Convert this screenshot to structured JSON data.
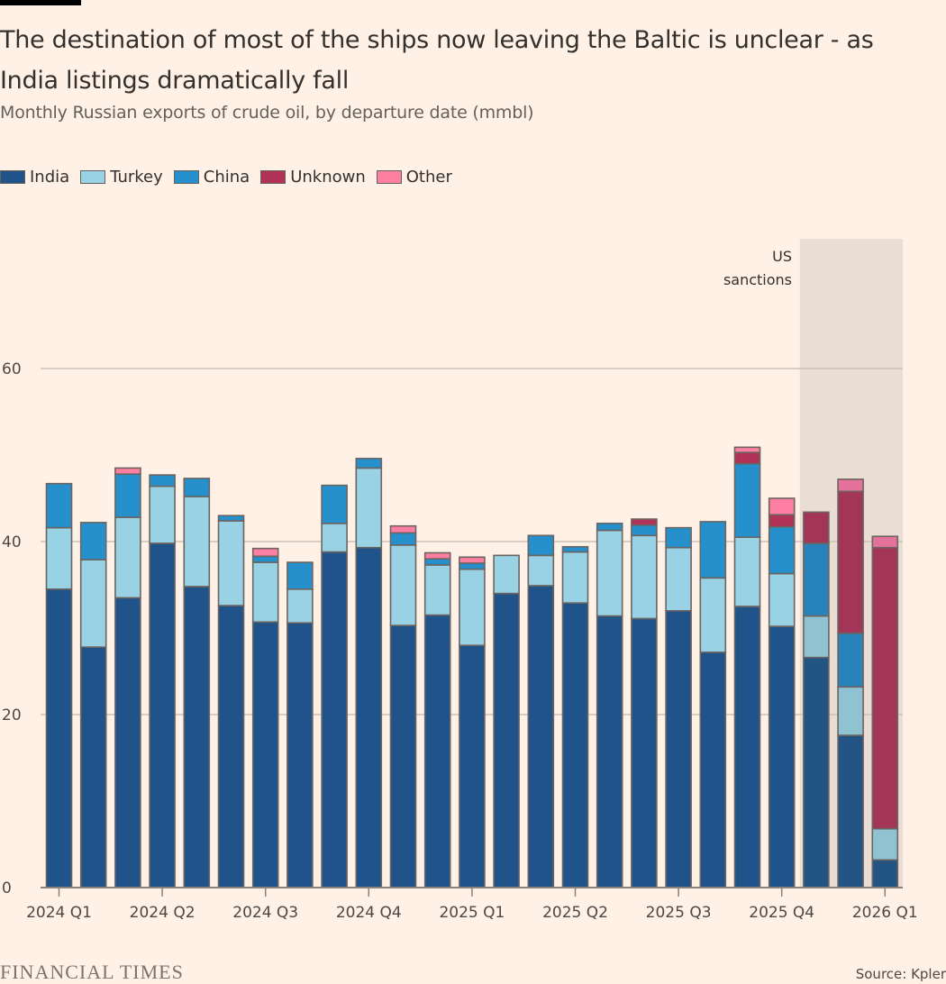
{
  "header": {
    "title": "The destination of most of the ships now leaving the Baltic is unclear - as India listings dramatically fall",
    "subtitle": "Monthly Russian exports of crude oil, by departure date (mmbl)"
  },
  "legend": [
    {
      "label": "India",
      "color": "#1f5389"
    },
    {
      "label": "Turkey",
      "color": "#98d2e4"
    },
    {
      "label": "China",
      "color": "#2590cc"
    },
    {
      "label": "Unknown",
      "color": "#b03357"
    },
    {
      "label": "Other",
      "color": "#ff7fa2"
    }
  ],
  "annotation": {
    "line1": "US",
    "line2": "sanctions"
  },
  "footer": {
    "publisher": "FINANCIAL TIMES",
    "source": "Source: Kpler"
  },
  "chart_data": {
    "type": "bar",
    "stacked": true,
    "title": "The destination of most of the ships now leaving the Baltic is unclear - as India listings dramatically fall",
    "subtitle": "Monthly Russian exports of crude oil, by departure date (mmbl)",
    "xlabel": "",
    "ylabel": "",
    "ylim": [
      0,
      75
    ],
    "yticks": [
      0,
      20,
      40,
      60
    ],
    "grid": true,
    "legend_position": "top-left",
    "x_tick_labels": [
      "2024 Q1",
      "2024 Q2",
      "2024 Q3",
      "2024 Q4",
      "2025 Q1",
      "2025 Q2",
      "2025 Q3",
      "2025 Q4",
      "2026 Q1"
    ],
    "x_tick_positions": [
      0,
      3,
      6,
      9,
      12,
      15,
      18,
      21,
      24
    ],
    "categories": [
      "Jan 2024",
      "Feb 2024",
      "Mar 2024",
      "Apr 2024",
      "May 2024",
      "Jun 2024",
      "Jul 2024",
      "Aug 2024",
      "Sep 2024",
      "Oct 2024",
      "Nov 2024",
      "Dec 2024",
      "Jan 2025",
      "Feb 2025",
      "Mar 2025",
      "Apr 2025",
      "May 2025",
      "Jun 2025",
      "Jul 2025",
      "Aug 2025",
      "Sep 2025",
      "Oct 2025",
      "Nov 2025",
      "Dec 2025",
      "Jan 2026"
    ],
    "shaded_region": {
      "label": "US sanctions",
      "from_index": 22,
      "to_index": 24
    },
    "series": [
      {
        "name": "India",
        "values": [
          34.5,
          27.8,
          33.5,
          39.8,
          34.8,
          32.6,
          30.7,
          30.6,
          38.8,
          39.3,
          30.3,
          31.5,
          28.0,
          34.0,
          34.9,
          32.9,
          31.4,
          31.1,
          32.0,
          27.2,
          32.5,
          30.2,
          26.6,
          17.6,
          3.2
        ]
      },
      {
        "name": "Turkey",
        "values": [
          7.1,
          10.1,
          9.3,
          6.6,
          10.4,
          9.8,
          6.9,
          3.9,
          3.3,
          9.2,
          9.3,
          5.8,
          8.8,
          4.4,
          3.5,
          5.9,
          9.9,
          9.6,
          7.3,
          8.6,
          8.0,
          6.1,
          4.8,
          5.6,
          3.6
        ]
      },
      {
        "name": "China",
        "values": [
          5.1,
          4.3,
          5.0,
          1.3,
          2.1,
          0.6,
          0.7,
          3.1,
          4.4,
          1.1,
          1.4,
          0.7,
          0.7,
          0.0,
          2.3,
          0.6,
          0.8,
          1.2,
          2.3,
          6.5,
          8.5,
          5.4,
          8.4,
          6.2,
          0.0
        ]
      },
      {
        "name": "Unknown",
        "values": [
          0,
          0,
          0,
          0,
          0,
          0,
          0,
          0,
          0,
          0,
          0,
          0,
          0,
          0,
          0,
          0,
          0,
          0.7,
          0,
          0,
          1.3,
          1.4,
          3.6,
          16.4,
          32.5
        ]
      },
      {
        "name": "Other",
        "values": [
          0,
          0,
          0.7,
          0,
          0,
          0,
          0.9,
          0,
          0,
          0,
          0.8,
          0.7,
          0.7,
          0,
          0,
          0,
          0,
          0,
          0,
          0,
          0.6,
          1.9,
          0,
          1.4,
          1.3
        ]
      }
    ]
  }
}
